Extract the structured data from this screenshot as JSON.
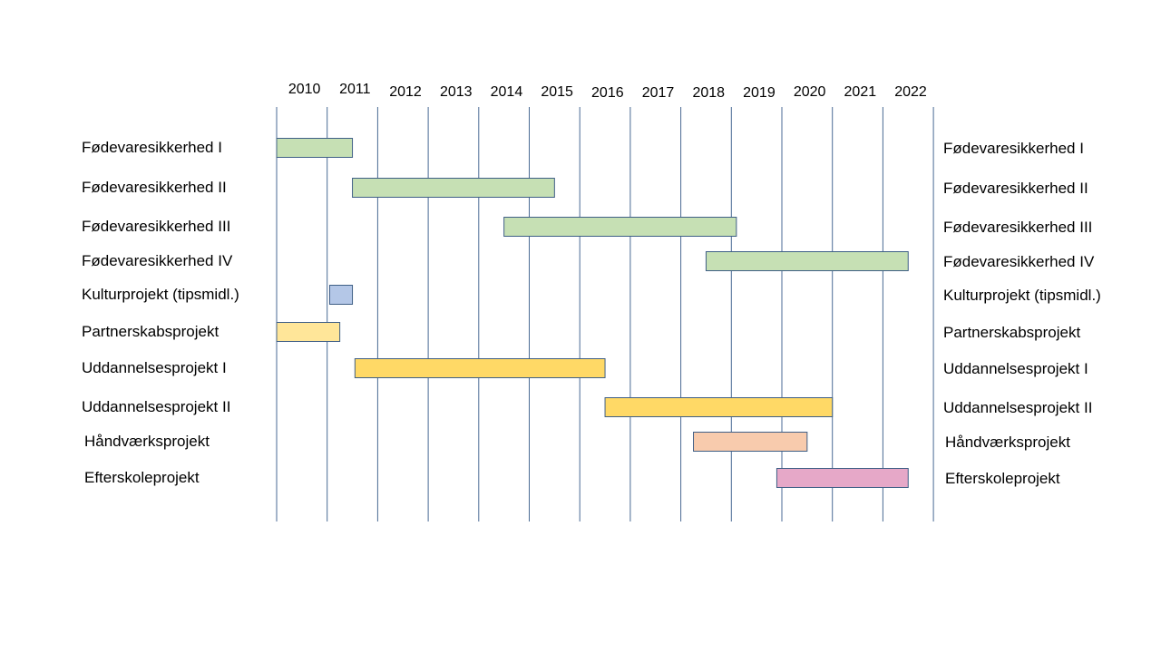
{
  "chart_data": {
    "type": "gantt",
    "title": "",
    "years": [
      "2010",
      "2011",
      "2012",
      "2013",
      "2014",
      "2015",
      "2016",
      "2017",
      "2018",
      "2019",
      "2020",
      "2021",
      "2022"
    ],
    "tasks": [
      {
        "name": "Fødevaresikkerhed  I",
        "start": 2009.5,
        "end": 2011.0,
        "color": "#c6e0b4"
      },
      {
        "name": "Fødevaresikkerhed  II",
        "start": 2011.0,
        "end": 2015.0,
        "color": "#c6e0b4"
      },
      {
        "name": "Fødevaresikkerhed  III",
        "start": 2014.0,
        "end": 2018.6,
        "color": "#c6e0b4"
      },
      {
        "name": "Fødevaresikkerhed  IV",
        "start": 2018.0,
        "end": 2022.0,
        "color": "#c6e0b4"
      },
      {
        "name": "Kulturprojekt  (tipsmidl.)",
        "start": 2010.55,
        "end": 2011.0,
        "color": "#b4c7e7"
      },
      {
        "name": "Partnerskabsprojekt",
        "start": 2009.5,
        "end": 2010.75,
        "color": "#ffe699"
      },
      {
        "name": "Uddannelsesprojekt  I",
        "start": 2011.05,
        "end": 2016.0,
        "color": "#ffd966"
      },
      {
        "name": "Uddannelsesprojekt  II",
        "start": 2016.0,
        "end": 2020.5,
        "color": "#ffd966"
      },
      {
        "name": "Håndværksprojekt",
        "start": 2017.75,
        "end": 2020.0,
        "color": "#f8cbad"
      },
      {
        "name": "Efterskoleprojekt",
        "start": 2019.4,
        "end": 2022.0,
        "color": "#e6a8c8"
      }
    ]
  }
}
